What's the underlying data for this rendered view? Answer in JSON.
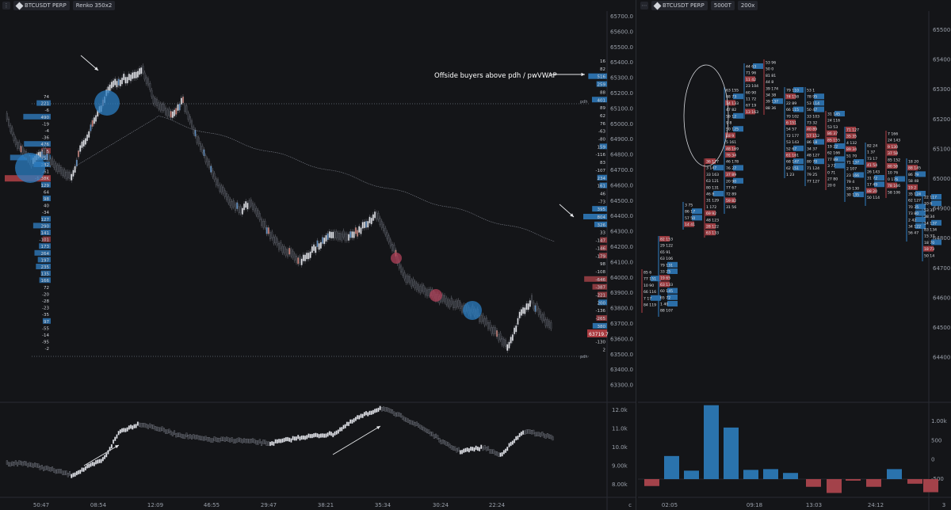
{
  "left": {
    "symbol": "BTCUSDT PERP",
    "chart_type": "Renko 350x2",
    "price_axis": [
      "65700.0",
      "65600.0",
      "65500.0",
      "65400.0",
      "65300.0",
      "65200.0",
      "65100.0",
      "65000.0",
      "64900.0",
      "64800.0",
      "64700.0",
      "64600.0",
      "64500.0",
      "64400.0",
      "64300.0",
      "64200.0",
      "64100.0",
      "64000.0",
      "63900.0",
      "63800.0",
      "63700.0",
      "63600.0",
      "63500.0",
      "63400.0",
      "63300.0"
    ],
    "indicator_axis": [
      "12.0k",
      "11.0k",
      "10.0k",
      "9.00k",
      "8.00k"
    ],
    "time_axis": [
      "50:47",
      "08:54",
      "12:09",
      "46:55",
      "29:47",
      "38:21",
      "35:34",
      "30:24",
      "22:24"
    ],
    "current_price": "63719.7",
    "pdh_label": "pdh",
    "pdl_label": "pdh",
    "annotation": "Offside buyers above pdh / pwVWAP",
    "left_profile_values": [
      "74",
      "221",
      "-6",
      "490",
      "-19",
      "-4",
      "-36",
      "476",
      "-125",
      "756",
      "282",
      "-61",
      "-1.38K",
      "129",
      "64",
      "98",
      "40",
      "-34",
      "127",
      "290",
      "141",
      "-101",
      "173",
      "264",
      "197",
      "235",
      "135",
      "166",
      "72",
      "-20",
      "-28",
      "-23",
      "-35",
      "97",
      "-55",
      "-14",
      "-95",
      "-2"
    ],
    "right_profile_values": [
      "16",
      "82",
      "516",
      "259",
      "88",
      "401",
      "89",
      "62",
      "76",
      "-63",
      "-80",
      "159",
      "-116",
      "83",
      "-107",
      "234",
      "161",
      "46",
      "-73",
      "395",
      "804",
      "326",
      "33",
      "-147",
      "-146",
      "-179",
      "98",
      "-108",
      "-646",
      "-387",
      "-221",
      "200",
      "-136",
      "-265",
      "380",
      "-108",
      "-130",
      "2"
    ],
    "axis_corner": "c"
  },
  "right": {
    "symbol": "BTCUSDT PERP",
    "interval": "5000T",
    "zoom": "200x",
    "price_axis": [
      "65500",
      "65400",
      "65300",
      "65200",
      "65100",
      "65000",
      "64900",
      "64800",
      "64700",
      "64600",
      "64500",
      "64400"
    ],
    "volume_axis": [
      "1.00k",
      "500",
      "0",
      "-500"
    ],
    "time_axis": [
      "02:05",
      "09:18",
      "13:03",
      "24:12"
    ],
    "axis_corner": "3"
  }
}
